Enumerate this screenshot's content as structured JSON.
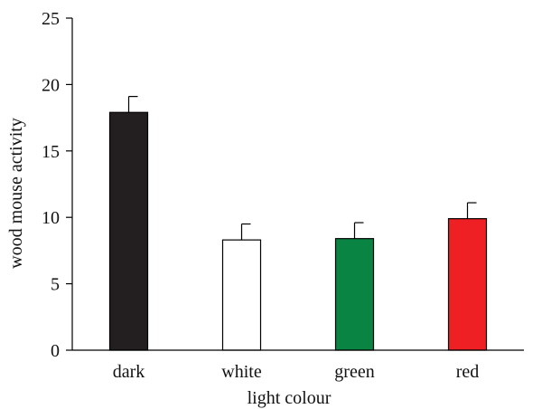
{
  "chart_data": {
    "type": "bar",
    "title": "",
    "xlabel": "light colour",
    "ylabel": "wood mouse activity",
    "categories": [
      "dark",
      "white",
      "green",
      "red"
    ],
    "values": [
      17.9,
      8.3,
      8.4,
      9.9
    ],
    "errors": [
      1.2,
      1.2,
      1.2,
      1.2
    ],
    "bar_colors": [
      "#231f20",
      "#ffffff",
      "#0a8443",
      "#ee2024"
    ],
    "ylim": [
      0,
      25
    ],
    "yticks": [
      "0",
      "5",
      "10",
      "15",
      "20",
      "25"
    ],
    "grid": false,
    "legend": "none"
  }
}
